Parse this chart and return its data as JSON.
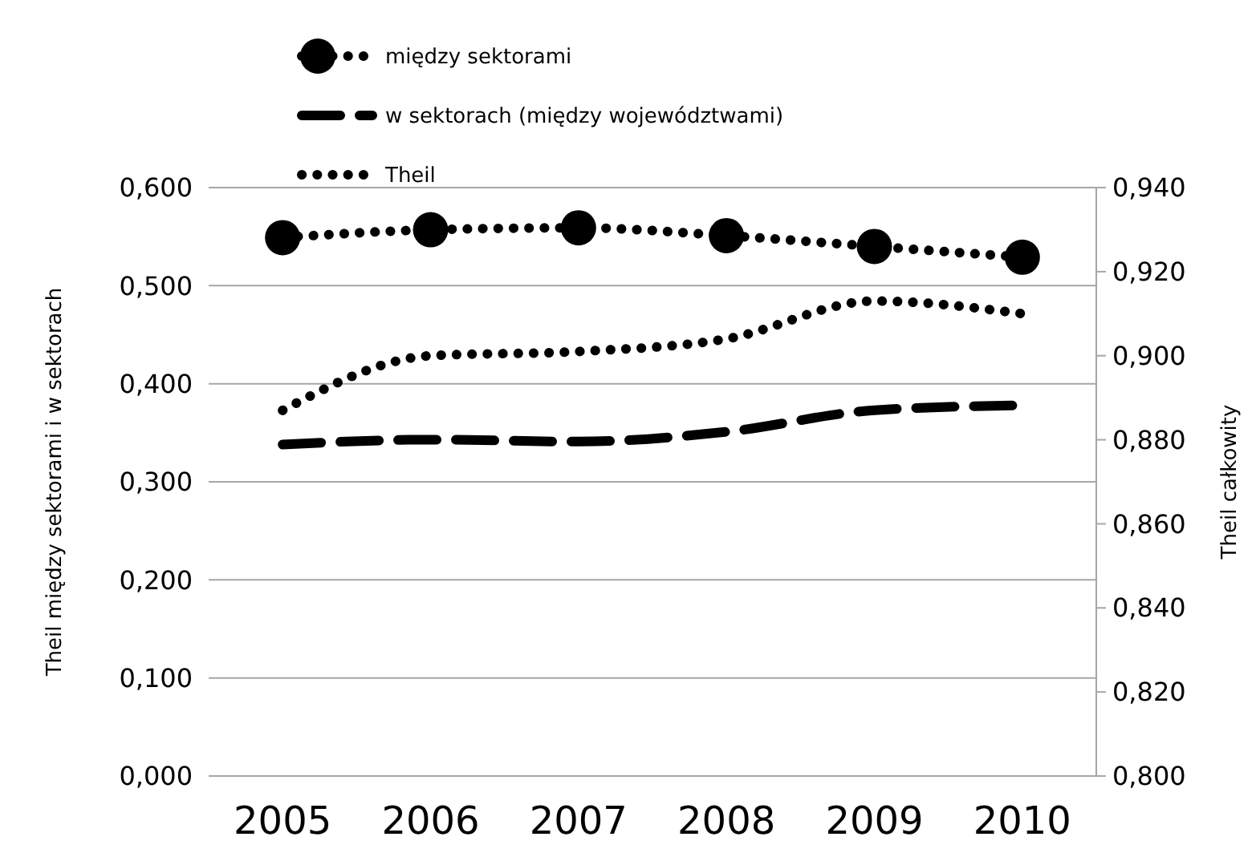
{
  "chart_data": {
    "type": "line",
    "categories": [
      "2005",
      "2006",
      "2007",
      "2008",
      "2009",
      "2010"
    ],
    "ylabel": "Theil między sektorami i w sektorach",
    "y2label": "Theil całkowity",
    "ylim": [
      0,
      0.6
    ],
    "yticks": [
      {
        "value": 0,
        "label": "0,000"
      },
      {
        "value": 0.1,
        "label": "0,100"
      },
      {
        "value": 0.2,
        "label": "0,200"
      },
      {
        "value": 0.3,
        "label": "0,300"
      },
      {
        "value": 0.4,
        "label": "0,400"
      },
      {
        "value": 0.5,
        "label": "0,500"
      },
      {
        "value": 0.6,
        "label": "0,600"
      }
    ],
    "y2lim": [
      0.8,
      0.94
    ],
    "y2ticks": [
      {
        "value": 0.8,
        "label": "0,800"
      },
      {
        "value": 0.82,
        "label": "0,820"
      },
      {
        "value": 0.84,
        "label": "0,840"
      },
      {
        "value": 0.86,
        "label": "0,860"
      },
      {
        "value": 0.88,
        "label": "0,880"
      },
      {
        "value": 0.9,
        "label": "0,900"
      },
      {
        "value": 0.92,
        "label": "0,920"
      },
      {
        "value": 0.94,
        "label": "0,940"
      }
    ],
    "grid": "y",
    "legend": "top",
    "series": [
      {
        "name": "między sektorami",
        "color": "#000000",
        "marker": "circle",
        "line_style": "dotted",
        "values": [
          0.549,
          0.557,
          0.559,
          0.551,
          0.54,
          0.529
        ]
      },
      {
        "name": "w sektorach (między województwami)",
        "color": "#000000",
        "marker": "none",
        "line_style": "dashed",
        "values": [
          0.338,
          0.343,
          0.341,
          0.351,
          0.373,
          0.378
        ]
      },
      {
        "name": "Theil",
        "color": "#000000",
        "marker": "none",
        "line_style": "dotted",
        "axis": "y2",
        "values": [
          0.887,
          0.9,
          0.901,
          0.904,
          0.913,
          0.91
        ]
      }
    ]
  }
}
